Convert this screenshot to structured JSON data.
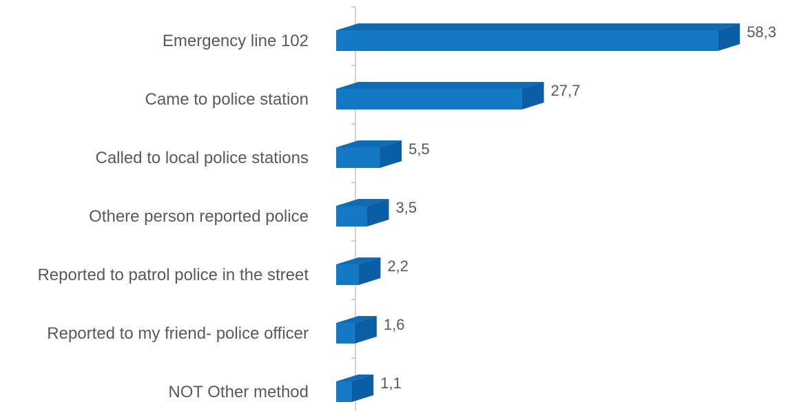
{
  "chart_data": {
    "type": "bar",
    "orientation": "horizontal",
    "style": "3d",
    "title": "",
    "xlabel": "",
    "ylabel": "",
    "xlim": [
      0,
      58.3
    ],
    "categories": [
      "Emergency line 102",
      "Came to police station",
      "Called to local police stations",
      "Othere person reported police",
      "Reported to patrol police in the street",
      "Reported to my friend- police officer",
      "NOT Other method"
    ],
    "values": [
      58.3,
      27.7,
      5.5,
      3.5,
      2.2,
      1.6,
      1.1
    ],
    "value_labels": [
      "58,3",
      "27,7",
      "5,5",
      "3,5",
      "2,2",
      "1,6",
      "1,1"
    ],
    "grid": false,
    "legend": "none",
    "colors": {
      "front": "#1479c4",
      "top": "#0f6cb3",
      "side": "#0a5ea3",
      "axis": "#a6a6a6",
      "text": "#595959"
    }
  }
}
